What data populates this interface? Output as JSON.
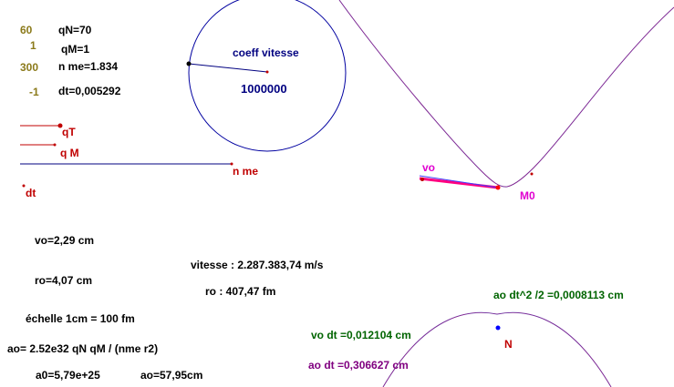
{
  "params": {
    "values": [
      "60",
      "1",
      "300",
      "-1"
    ],
    "labels": [
      "qN=70",
      "qM=1",
      "n me=1.834",
      "dt=0,005292"
    ]
  },
  "sliders": {
    "qT": "qT",
    "qM": "q M",
    "nme": "n me",
    "dt": "dt"
  },
  "circle": {
    "title": "coeff vitesse",
    "value": "1000000"
  },
  "points": {
    "vo": "vo",
    "M0": "M0",
    "N": "N"
  },
  "results": {
    "vo": "vo=2,29  cm",
    "ro": "ro=4,07  cm",
    "echelle": "échelle 1cm =  100   fm",
    "ao_formula": "ao= 2.52e32 qN qM / (nme r2)",
    "a0": "a0=5,79e+25",
    "ao_cm": "ao=57,95cm",
    "vitesse": "vitesse  : 2.287.383,74 m/s",
    "ro_fm": "ro  : 407,47 fm",
    "ao_dt2": "ao dt^2 /2 =0,0008113  cm",
    "vo_dt": "vo dt =0,012104  cm",
    "ao_dt": "ao dt =0,306627 cm"
  },
  "colors": {
    "olive": "#8b7a1a",
    "red": "#c00000",
    "navy": "#000080",
    "green": "#006400",
    "purple": "#800080",
    "magenta": "#e000d0",
    "blue": "#0000ff"
  }
}
